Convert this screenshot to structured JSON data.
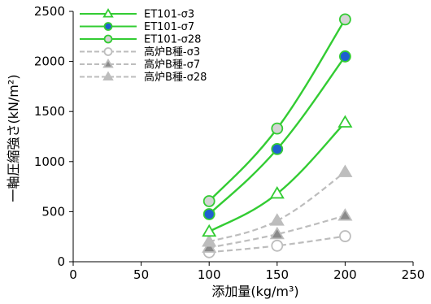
{
  "chart_data": {
    "type": "line",
    "x": [
      100,
      150,
      200
    ],
    "xlabel": "添加量(kg/m³)",
    "ylabel": "一軸圧縮強さ(kN/m²)",
    "xlim": [
      0,
      250
    ],
    "ylim": [
      0,
      2500
    ],
    "xticks": [
      0,
      50,
      100,
      150,
      200,
      250
    ],
    "yticks": [
      0,
      500,
      1000,
      1500,
      2000,
      2500
    ],
    "grid": false,
    "legend_position": "top-left",
    "series": [
      {
        "name": "ET101-σ3",
        "values": [
          300,
          680,
          1390
        ],
        "color": "#33cc33",
        "dash": "solid",
        "marker": "triangle",
        "marker_fill": "#ffffff"
      },
      {
        "name": "ET101-σ7",
        "values": [
          475,
          1125,
          2050
        ],
        "color": "#33cc33",
        "dash": "solid",
        "marker": "circle",
        "marker_fill": "#1f5fd0"
      },
      {
        "name": "ET101-σ28",
        "values": [
          605,
          1330,
          2420
        ],
        "color": "#33cc33",
        "dash": "solid",
        "marker": "circle",
        "marker_fill": "#d4d4d4"
      },
      {
        "name": "高炉B種-σ3",
        "values": [
          95,
          160,
          255
        ],
        "color": "#bdbdbd",
        "dash": "dashed",
        "marker": "circle",
        "marker_fill": "#ffffff"
      },
      {
        "name": "高炉B種-σ7",
        "values": [
          140,
          275,
          460
        ],
        "color": "#bdbdbd",
        "dash": "dashed",
        "marker": "triangle",
        "marker_fill": "#8a8a8a"
      },
      {
        "name": "高炉B種-σ28",
        "values": [
          200,
          410,
          895
        ],
        "color": "#bdbdbd",
        "dash": "dashed",
        "marker": "triangle",
        "marker_fill": "#bdbdbd"
      }
    ]
  }
}
